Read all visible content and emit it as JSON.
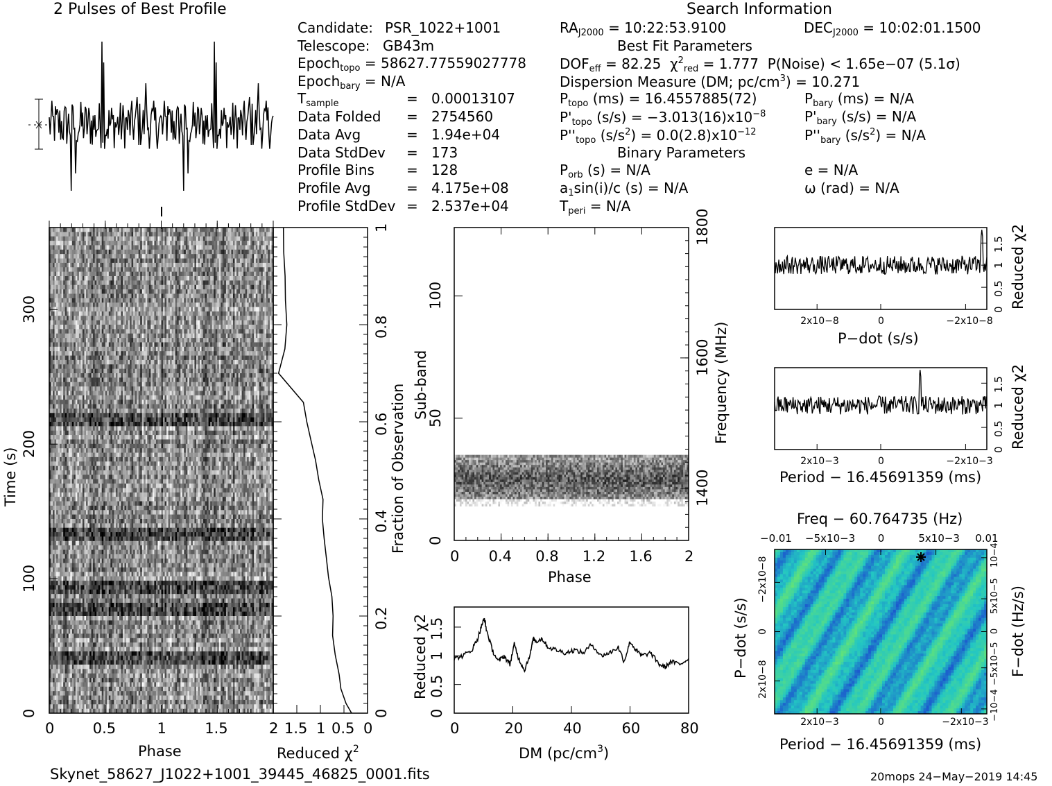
{
  "header": {
    "left_title": "2 Pulses of Best Profile",
    "right_title": "Search Information"
  },
  "info": {
    "candidate_label": "Candidate:",
    "candidate": "PSR_1022+1001",
    "telescope_label": "Telescope:",
    "telescope": "GB43m",
    "epoch_topo_label": "Epoch",
    "epoch_topo_sub": "topo",
    "epoch_topo": "= 58627.77559027778",
    "epoch_bary_label": "Epoch",
    "epoch_bary_sub": "bary",
    "epoch_bary": "= N/A",
    "tsample_label": "T",
    "tsample_sub": "sample",
    "tsample": "0.00013107",
    "data_folded_label": "Data Folded",
    "data_folded": "2754560",
    "data_avg_label": "Data Avg",
    "data_avg": "1.94e+04",
    "data_std_label": "Data StdDev",
    "data_std": "173",
    "profile_bins_label": "Profile Bins",
    "profile_bins": "128",
    "profile_avg_label": "Profile Avg",
    "profile_avg": "4.175e+08",
    "profile_std_label": "Profile StdDev",
    "profile_std": "2.537e+04",
    "eq": "=",
    "ra_label": "RA",
    "ra_sub": "J2000",
    "ra": "= 10:22:53.9100",
    "dec_label": "DEC",
    "dec_sub": "J2000",
    "dec": "= 10:02:01.1500",
    "best_fit_title": "Best Fit Parameters",
    "dof_line_a": "DOF",
    "dof_sub": "eff",
    "dof_val": "= 82.25",
    "chi_label": "χ",
    "chi_sup": "2",
    "chi_sub": "red",
    "chi_val": "= 1.777",
    "pnoise": "P(Noise) < 1.65e−07  (5.1σ)",
    "dm_line": "Dispersion Measure (DM; pc/cm",
    "dm_sup": "3",
    "dm_val": ") = 10.271",
    "ptopo_label": "P",
    "ptopo_sub": "topo",
    "ptopo_val": "(ms) =  16.4557885(72)",
    "pdtopo_label": "P'",
    "pdtopo_sub": "topo",
    "pdtopo_val": "(s/s) = −3.013(16)x10",
    "pdtopo_exp": "−8",
    "pddtopo_label": "P''",
    "pddtopo_sub": "topo",
    "pddtopo_val_a": "(s/s",
    "pddtopo_sup": "2",
    "pddtopo_val_b": ") = 0.0(2.8)x10",
    "pddtopo_exp": "−12",
    "pbary_label": "P",
    "pbary_sub": "bary",
    "pbary_val": "(ms) = N/A",
    "pdbary_label": "P'",
    "pdbary_sub": "bary",
    "pdbary_val": "(s/s) = N/A",
    "pddbary_label": "P''",
    "pddbary_sub": "bary",
    "pddbary_val_a": "(s/s",
    "pddbary_sup": "2",
    "pddbary_val_b": ") = N/A",
    "binary_title": "Binary Parameters",
    "porb_label": "P",
    "porb_sub": "orb",
    "porb_val": "(s) = N/A",
    "asini_label": "a",
    "asini_sub": "1",
    "asini_val": "sin(i)/c (s) = N/A",
    "tperi_label": "T",
    "tperi_sub": "peri",
    "tperi_val": "= N/A",
    "e_val": "e = N/A",
    "omega_val": "ω (rad) = N/A"
  },
  "footer": {
    "filename": "Skynet_58627_J1022+1001_39445_46825_0001.fits",
    "stamp": "20mops 24−May−2019 14:45"
  },
  "colors": {
    "ink": "#000000",
    "bg": "#ffffff",
    "map_lo": "#1a3fd0",
    "map_mid": "#23c6c3",
    "map_hi": "#6ee86a"
  },
  "chart_data": [
    {
      "id": "profile",
      "type": "line",
      "title": "2 Pulses of Best Profile",
      "xlabel": "",
      "ylabel": "",
      "x_range": [
        0,
        2
      ],
      "n_points": 256,
      "noise_amplitude": 1.0,
      "notes": "two repetitions of a noise-dominated pulse profile"
    },
    {
      "id": "time_phase",
      "type": "heatmap",
      "xlabel": "Phase",
      "ylabel": "Time (s)",
      "x_ticks": [
        "0",
        "0.5",
        "1",
        "1.5",
        "2"
      ],
      "x_tick_values": [
        0,
        0.5,
        1,
        1.5,
        2
      ],
      "y_ticks": [
        "0",
        "100",
        "200",
        "300"
      ],
      "y_tick_values": [
        0,
        100,
        200,
        300
      ],
      "xlim": [
        0,
        2
      ],
      "ylim": [
        0,
        361
      ],
      "right_axis_label": "Fraction of Observation",
      "right_ticks": [
        "0",
        "0.2",
        "0.4",
        "0.6",
        "0.8",
        "1"
      ],
      "right_tick_values": [
        0,
        0.2,
        0.4,
        0.6,
        0.8,
        1
      ],
      "n_rows": 110,
      "n_cols": 128,
      "dark_bands_fraction": [
        0.12,
        0.22,
        0.26,
        0.37,
        0.61
      ]
    },
    {
      "id": "time_chi",
      "type": "line",
      "xlabel": "Reduced χ2",
      "x_ticks": [
        "2",
        "1.5",
        "1",
        "0.5",
        "0"
      ],
      "x_tick_values": [
        2,
        1.5,
        1,
        0.5,
        0
      ],
      "xlim": [
        2,
        0
      ],
      "fraction": [
        0.0,
        0.02,
        0.05,
        0.08,
        0.12,
        0.16,
        0.2,
        0.24,
        0.28,
        0.32,
        0.36,
        0.4,
        0.44,
        0.48,
        0.52,
        0.56,
        0.6,
        0.64,
        0.7,
        0.75,
        0.8,
        0.85,
        0.9,
        0.95,
        1.0
      ],
      "reduced_chi2": [
        0.35,
        0.45,
        0.55,
        0.6,
        0.68,
        0.72,
        0.75,
        0.78,
        0.82,
        0.86,
        0.9,
        0.95,
        0.92,
        1.05,
        1.1,
        1.2,
        1.3,
        1.35,
        1.9,
        1.75,
        1.7,
        1.72,
        1.75,
        1.78,
        1.8
      ]
    },
    {
      "id": "subband_phase",
      "type": "heatmap",
      "xlabel": "Phase",
      "ylabel": "Sub-band",
      "x_ticks": [
        "0",
        "0.4",
        "0.8",
        "1.2",
        "1.6",
        "2"
      ],
      "x_tick_values": [
        0,
        0.4,
        0.8,
        1.2,
        1.6,
        2
      ],
      "y_ticks": [
        "0",
        "50",
        "100"
      ],
      "y_tick_values": [
        0,
        50,
        100
      ],
      "xlim": [
        0,
        2
      ],
      "ylim": [
        0,
        128
      ],
      "right_axis_label": "Frequency (MHz)",
      "right_ticks": [
        "1400",
        "1600",
        "1800"
      ],
      "right_tick_values": [
        1400,
        1600,
        1800
      ],
      "filled_subbands": [
        14,
        35
      ]
    },
    {
      "id": "dm_chi",
      "type": "line",
      "xlabel": "DM (pc/cm3)",
      "ylabel": "Reduced χ2",
      "x_ticks": [
        "0",
        "20",
        "40",
        "60",
        "80"
      ],
      "x_tick_values": [
        0,
        20,
        40,
        60,
        80
      ],
      "y_ticks": [
        "0",
        "0.5",
        "1",
        "1.5"
      ],
      "y_tick_values": [
        0,
        0.5,
        1,
        1.5
      ],
      "xlim": [
        0,
        80
      ],
      "ylim": [
        0,
        1.85
      ],
      "x": [
        0,
        3,
        6,
        8,
        9.5,
        10.3,
        11,
        13,
        15,
        17,
        19,
        20.5,
        22,
        24,
        26,
        27,
        28,
        30,
        32,
        35,
        38,
        41,
        44,
        47,
        50,
        53,
        56,
        58,
        60,
        62,
        64,
        67,
        70,
        72,
        74,
        77,
        80
      ],
      "y": [
        0.95,
        1.0,
        1.1,
        1.3,
        1.55,
        1.65,
        1.45,
        1.1,
        0.9,
        1.0,
        0.85,
        1.2,
        0.95,
        0.75,
        1.05,
        1.3,
        1.25,
        1.3,
        1.15,
        1.1,
        1.05,
        1.1,
        1.05,
        1.2,
        1.0,
        1.05,
        1.15,
        0.9,
        1.25,
        1.1,
        1.0,
        1.05,
        0.85,
        0.8,
        0.9,
        0.85,
        0.95
      ]
    },
    {
      "id": "pdot_chi",
      "type": "line",
      "xlabel": "P−dot (s/s)",
      "ylabel": "Reduced χ2",
      "x_ticks": [
        "2x10−8",
        "0",
        "−2x10−8"
      ],
      "y_ticks": [
        "0",
        "0.5",
        "1",
        "1.5"
      ],
      "y_tick_values": [
        0,
        0.5,
        1,
        1.5
      ],
      "ylim": [
        0,
        1.85
      ],
      "baseline": 1.0,
      "peak": {
        "position": "right edge",
        "value": 1.8
      }
    },
    {
      "id": "period_chi",
      "type": "line",
      "xlabel": "Period − 16.45691359 (ms)",
      "ylabel": "Reduced χ2",
      "x_ticks": [
        "2x10−3",
        "0",
        "−2x10−3"
      ],
      "y_ticks": [
        "0",
        "0.5",
        "1",
        "1.5"
      ],
      "y_tick_values": [
        0,
        0.5,
        1,
        1.5
      ],
      "ylim": [
        0,
        1.85
      ],
      "baseline": 1.0,
      "peak": {
        "position": "right of center",
        "value": 1.8
      }
    },
    {
      "id": "ppdot_plane",
      "type": "heatmap",
      "title": "Freq − 60.764735 (Hz)",
      "xlabel": "Period − 16.45691359 (ms)",
      "ylabel": "P−dot (s/s)",
      "right_axis_label": "F−dot (Hz/s)",
      "top_ticks": [
        "−0.01",
        "−5x10−3",
        "0",
        "5x10−3",
        "0.01"
      ],
      "bottom_ticks": [
        "2x10−3",
        "0",
        "−2x10−3"
      ],
      "left_ticks": [
        "−2x10−8",
        "0",
        "2x10−8"
      ],
      "right_ticks": [
        "10−4",
        "5x10−5",
        "0",
        "−5x10−5",
        "−10−4"
      ],
      "best_marker": {
        "period_offset": -0.0012,
        "pdot": -3e-08
      }
    }
  ]
}
